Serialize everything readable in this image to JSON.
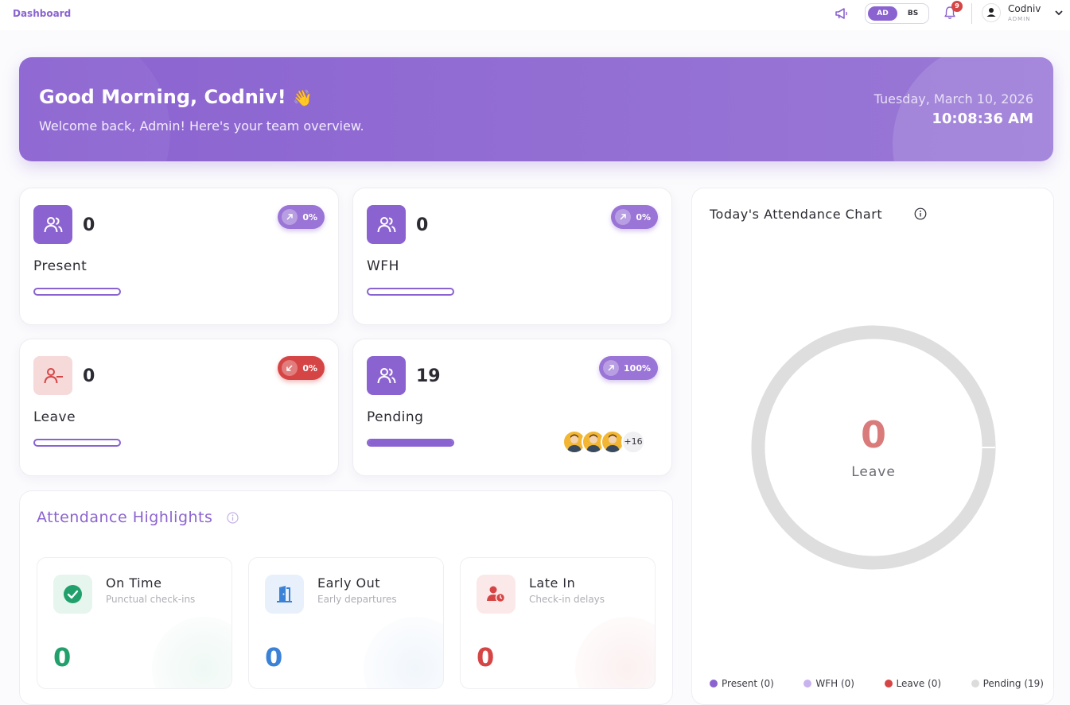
{
  "topbar": {
    "breadcrumb": "Dashboard",
    "date_toggle": {
      "ad": "AD",
      "bs": "BS",
      "selected": "AD"
    },
    "notifications_count": "9",
    "user": {
      "name": "Codniv",
      "role": "ADMIN"
    }
  },
  "hero": {
    "greeting": "Good Morning, Codniv!",
    "emoji": "👋",
    "welcome": "Welcome back, Admin! Here's your team overview.",
    "date": "Tuesday, March 10, 2026",
    "time": "10:08:36 AM"
  },
  "stats": [
    {
      "label": "Present",
      "value": "0",
      "change": "0%",
      "trend": "up",
      "fill_fraction": 0,
      "icon": "users-icon"
    },
    {
      "label": "WFH",
      "value": "0",
      "change": "0%",
      "trend": "up",
      "fill_fraction": 0,
      "icon": "users-icon"
    },
    {
      "label": "Leave",
      "value": "0",
      "change": "0%",
      "trend": "down",
      "fill_fraction": 0,
      "icon": "user-minus-icon"
    },
    {
      "label": "Pending",
      "value": "19",
      "change": "100%",
      "trend": "up",
      "fill_fraction": 1,
      "icon": "users-icon",
      "avatars_more": "+16"
    }
  ],
  "highlights": {
    "title": "Attendance Highlights",
    "items": [
      {
        "name": "On Time",
        "subtitle": "Punctual check-ins",
        "value": "0",
        "color": "#22a06b",
        "icon": "check-circle-icon"
      },
      {
        "name": "Early Out",
        "subtitle": "Early departures",
        "value": "0",
        "color": "#3b82d6",
        "icon": "door-exit-icon"
      },
      {
        "name": "Late In",
        "subtitle": "Check-in delays",
        "value": "0",
        "color": "#d64545",
        "icon": "user-clock-icon"
      }
    ]
  },
  "attendance_chart": {
    "title": "Today's Attendance Chart",
    "center_value": "0",
    "center_label": "Leave",
    "legend": [
      {
        "label": "Present (0)",
        "color": "#8b63d0"
      },
      {
        "label": "WFH (0)",
        "color": "#c9b3ef"
      },
      {
        "label": "Leave (0)",
        "color": "#d64545"
      },
      {
        "label": "Pending (19)",
        "color": "#dcdcdc"
      }
    ]
  },
  "colors": {
    "accent": "#8b63d0",
    "danger": "#d64545"
  }
}
